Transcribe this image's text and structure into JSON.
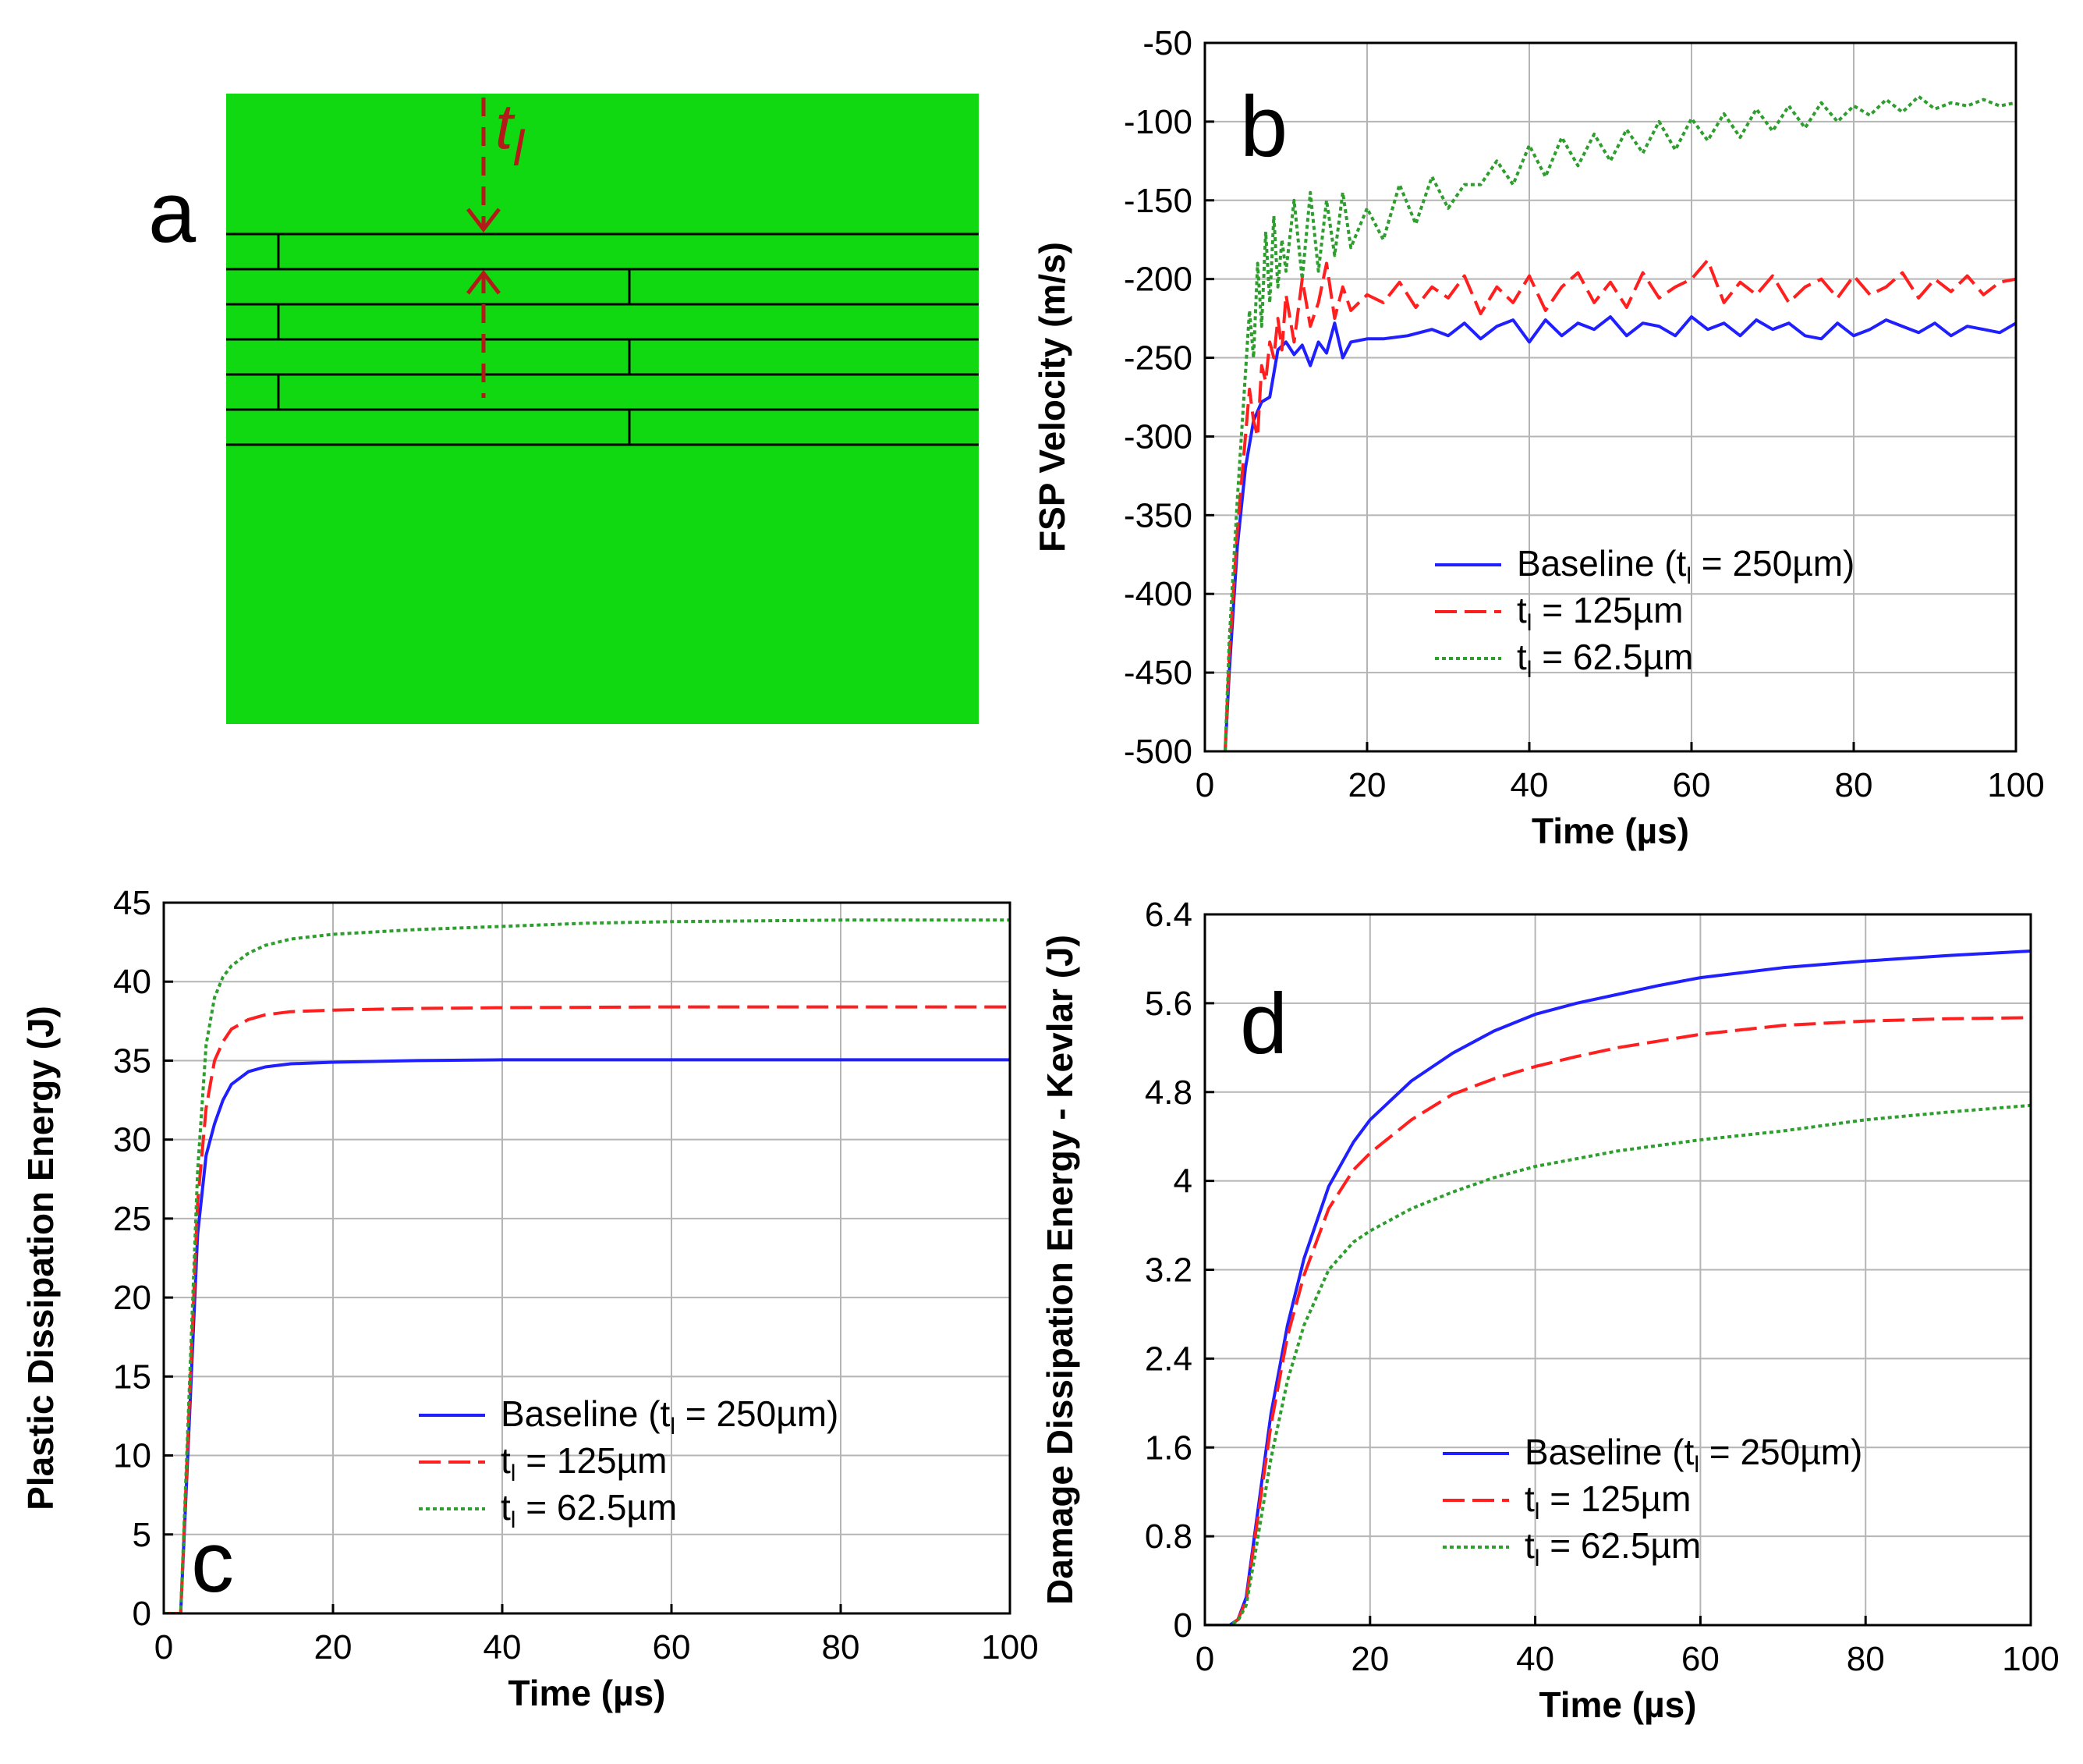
{
  "colors": {
    "baseline": "#1f1fff",
    "t125": "#ff1f1f",
    "t62": "#2e9e2e",
    "laminate_green": "#11d911",
    "annotation_red": "#b41a1a"
  },
  "panel_a": {
    "letter": "a",
    "thickness_label_main": "t",
    "thickness_label_sub": "l"
  },
  "chart_data": [
    {
      "panel": "b",
      "type": "line",
      "title": "",
      "xlabel": "Time (µs)",
      "ylabel": "FSP Velocity (m/s)",
      "xlim": [
        0,
        100
      ],
      "ylim": [
        -500,
        -50
      ],
      "xticks": [
        0,
        20,
        40,
        60,
        80,
        100
      ],
      "yticks": [
        -500,
        -450,
        -400,
        -350,
        -300,
        -250,
        -200,
        -150,
        -100,
        -50
      ],
      "xtick_labels": [
        "0",
        "20",
        "40",
        "60",
        "80",
        "100"
      ],
      "ytick_labels": [
        "-500",
        "-450",
        "-400",
        "-350",
        "-300",
        "-250",
        "-200",
        "-150",
        "-100",
        "-50"
      ],
      "grid": true,
      "legend_position": "bottom-right",
      "series": [
        {
          "name": "Baseline (tl = 250µm)",
          "legend_main": "Baseline (t",
          "legend_sub": "l",
          "legend_tail": " = 250µm)",
          "style": "solid",
          "x": [
            2.5,
            3,
            4,
            5,
            6,
            7,
            8,
            9,
            10,
            11,
            12,
            13,
            14,
            15,
            16,
            17,
            18,
            20,
            22,
            25,
            28,
            30,
            32,
            34,
            36,
            38,
            40,
            42,
            44,
            46,
            48,
            50,
            52,
            54,
            56,
            58,
            60,
            62,
            64,
            66,
            68,
            70,
            72,
            74,
            76,
            78,
            80,
            82,
            84,
            86,
            88,
            90,
            92,
            94,
            96,
            98,
            100
          ],
          "y": [
            -500,
            -450,
            -370,
            -320,
            -290,
            -278,
            -275,
            -245,
            -240,
            -248,
            -242,
            -255,
            -240,
            -247,
            -228,
            -250,
            -240,
            -238,
            -238,
            -236,
            -232,
            -236,
            -228,
            -238,
            -230,
            -226,
            -240,
            -226,
            -236,
            -228,
            -232,
            -224,
            -236,
            -228,
            -230,
            -236,
            -224,
            -232,
            -228,
            -236,
            -226,
            -232,
            -228,
            -236,
            -238,
            -228,
            -236,
            -232,
            -226,
            -230,
            -234,
            -228,
            -236,
            -230,
            -232,
            -234,
            -228
          ]
        },
        {
          "name": "tl = 125µm",
          "legend_main": "t",
          "legend_sub": "l",
          "legend_tail": " = 125µm",
          "style": "dashed",
          "x": [
            2.5,
            3,
            4,
            5,
            5.5,
            6,
            6.5,
            7,
            7.5,
            8,
            8.5,
            9,
            9.5,
            10,
            11,
            12,
            13,
            14,
            15,
            16,
            17,
            18,
            20,
            22,
            24,
            26,
            28,
            30,
            32,
            34,
            36,
            38,
            40,
            42,
            44,
            46,
            48,
            50,
            52,
            54,
            56,
            58,
            60,
            62,
            64,
            66,
            68,
            70,
            72,
            74,
            76,
            78,
            80,
            82,
            84,
            86,
            88,
            90,
            92,
            94,
            96,
            98,
            100
          ],
          "y": [
            -500,
            -440,
            -360,
            -300,
            -270,
            -290,
            -300,
            -255,
            -265,
            -240,
            -250,
            -225,
            -245,
            -210,
            -240,
            -200,
            -230,
            -215,
            -190,
            -225,
            -205,
            -220,
            -210,
            -215,
            -202,
            -218,
            -205,
            -212,
            -198,
            -222,
            -205,
            -215,
            -198,
            -220,
            -205,
            -196,
            -215,
            -202,
            -218,
            -196,
            -212,
            -205,
            -200,
            -188,
            -215,
            -202,
            -210,
            -198,
            -215,
            -205,
            -200,
            -212,
            -198,
            -210,
            -205,
            -196,
            -212,
            -200,
            -208,
            -198,
            -210,
            -202,
            -200
          ]
        },
        {
          "name": "tl = 62.5µm",
          "legend_main": "t",
          "legend_sub": "l",
          "legend_tail": " = 62.5µm",
          "style": "dotted",
          "x": [
            2.5,
            3,
            4,
            5,
            5.5,
            6,
            6.5,
            7,
            7.5,
            8,
            8.5,
            9,
            9.5,
            10,
            11,
            12,
            13,
            14,
            15,
            16,
            17,
            18,
            20,
            22,
            24,
            26,
            28,
            30,
            32,
            34,
            36,
            38,
            40,
            42,
            44,
            46,
            48,
            50,
            52,
            54,
            56,
            58,
            60,
            62,
            64,
            66,
            68,
            70,
            72,
            74,
            76,
            78,
            80,
            82,
            84,
            86,
            88,
            90,
            92,
            94,
            96,
            98,
            100
          ],
          "y": [
            -500,
            -430,
            -340,
            -260,
            -220,
            -250,
            -190,
            -230,
            -170,
            -215,
            -160,
            -205,
            -175,
            -195,
            -150,
            -200,
            -145,
            -195,
            -150,
            -185,
            -145,
            -180,
            -155,
            -175,
            -140,
            -165,
            -135,
            -155,
            -140,
            -140,
            -125,
            -140,
            -115,
            -135,
            -110,
            -128,
            -108,
            -125,
            -105,
            -120,
            -100,
            -118,
            -98,
            -112,
            -95,
            -110,
            -92,
            -106,
            -90,
            -104,
            -88,
            -100,
            -90,
            -96,
            -86,
            -94,
            -84,
            -92,
            -88,
            -90,
            -86,
            -90,
            -88
          ]
        }
      ]
    },
    {
      "panel": "c",
      "type": "line",
      "title": "",
      "xlabel": "Time (µs)",
      "ylabel": "Plastic Dissipation Energy (J)",
      "xlim": [
        0,
        100
      ],
      "ylim": [
        0,
        45
      ],
      "xticks": [
        0,
        20,
        40,
        60,
        80,
        100
      ],
      "yticks": [
        0,
        5,
        10,
        15,
        20,
        25,
        30,
        35,
        40,
        45
      ],
      "xtick_labels": [
        "0",
        "20",
        "40",
        "60",
        "80",
        "100"
      ],
      "ytick_labels": [
        "0",
        "5",
        "10",
        "15",
        "20",
        "25",
        "30",
        "35",
        "40",
        "45"
      ],
      "grid": true,
      "legend_position": "bottom-right",
      "series": [
        {
          "name": "Baseline (tl = 250µm)",
          "legend_main": "Baseline (t",
          "legend_sub": "l",
          "legend_tail": " = 250µm)",
          "style": "solid",
          "x": [
            0,
            2,
            3,
            4,
            5,
            6,
            7,
            8,
            10,
            12,
            15,
            20,
            30,
            40,
            60,
            80,
            100
          ],
          "y": [
            0,
            0,
            12,
            24,
            29,
            31,
            32.5,
            33.5,
            34.3,
            34.6,
            34.8,
            34.9,
            35.0,
            35.05,
            35.05,
            35.05,
            35.05
          ]
        },
        {
          "name": "tl = 125µm",
          "legend_main": "t",
          "legend_sub": "l",
          "legend_tail": " = 125µm",
          "style": "dashed",
          "x": [
            0,
            2,
            3,
            4,
            5,
            6,
            7,
            8,
            10,
            12,
            15,
            20,
            30,
            40,
            60,
            80,
            100
          ],
          "y": [
            0,
            0,
            13,
            26,
            32,
            35,
            36.2,
            37,
            37.6,
            37.9,
            38.1,
            38.2,
            38.3,
            38.35,
            38.4,
            38.4,
            38.4
          ]
        },
        {
          "name": "tl = 62.5µm",
          "legend_main": "t",
          "legend_sub": "l",
          "legend_tail": " = 62.5µm",
          "style": "dotted",
          "x": [
            0,
            2,
            3,
            4,
            5,
            6,
            7,
            8,
            10,
            12,
            15,
            20,
            30,
            40,
            50,
            60,
            80,
            100
          ],
          "y": [
            0,
            0,
            14,
            28,
            36,
            39,
            40.3,
            41,
            41.8,
            42.3,
            42.7,
            43.0,
            43.3,
            43.5,
            43.7,
            43.8,
            43.9,
            43.9
          ]
        }
      ]
    },
    {
      "panel": "d",
      "type": "line",
      "title": "",
      "xlabel": "Time (µs)",
      "ylabel": "Damage Dissipation Energy - Kevlar (J)",
      "xlim": [
        0,
        100
      ],
      "ylim": [
        0,
        6.4
      ],
      "xticks": [
        0,
        20,
        40,
        60,
        80,
        100
      ],
      "yticks": [
        0,
        0.8,
        1.6,
        2.4,
        3.2,
        4,
        4.8,
        5.6,
        6.4
      ],
      "xtick_labels": [
        "0",
        "20",
        "40",
        "60",
        "80",
        "100"
      ],
      "ytick_labels": [
        "0",
        "0.8",
        "1.6",
        "2.4",
        "3.2",
        "4",
        "4.8",
        "5.6",
        "6.4"
      ],
      "grid": true,
      "legend_position": "bottom-right",
      "series": [
        {
          "name": "Baseline (tl = 250µm)",
          "legend_main": "Baseline (t",
          "legend_sub": "l",
          "legend_tail": " = 250µm)",
          "style": "solid",
          "x": [
            0,
            3,
            4,
            5,
            6,
            8,
            10,
            12,
            15,
            18,
            20,
            25,
            30,
            35,
            40,
            45,
            50,
            55,
            60,
            70,
            80,
            90,
            100
          ],
          "y": [
            0,
            0,
            0.05,
            0.25,
            0.8,
            1.9,
            2.7,
            3.3,
            3.95,
            4.35,
            4.55,
            4.9,
            5.15,
            5.35,
            5.5,
            5.6,
            5.68,
            5.76,
            5.83,
            5.92,
            5.98,
            6.03,
            6.07
          ]
        },
        {
          "name": "tl = 125µm",
          "legend_main": "t",
          "legend_sub": "l",
          "legend_tail": " = 125µm",
          "style": "dashed",
          "x": [
            0,
            3,
            4,
            5,
            6,
            8,
            10,
            12,
            15,
            18,
            20,
            25,
            30,
            35,
            40,
            45,
            50,
            55,
            60,
            70,
            80,
            90,
            100
          ],
          "y": [
            0,
            0,
            0.05,
            0.22,
            0.75,
            1.8,
            2.6,
            3.15,
            3.75,
            4.1,
            4.25,
            4.55,
            4.78,
            4.92,
            5.03,
            5.12,
            5.2,
            5.26,
            5.32,
            5.4,
            5.44,
            5.46,
            5.47
          ]
        },
        {
          "name": "tl = 62.5µm",
          "legend_main": "t",
          "legend_sub": "l",
          "legend_tail": " = 62.5µm",
          "style": "dotted",
          "x": [
            0,
            3,
            4,
            5,
            6,
            8,
            10,
            12,
            15,
            18,
            20,
            25,
            30,
            35,
            40,
            45,
            50,
            55,
            60,
            70,
            80,
            90,
            100
          ],
          "y": [
            0,
            0,
            0.04,
            0.18,
            0.6,
            1.5,
            2.2,
            2.7,
            3.2,
            3.45,
            3.55,
            3.75,
            3.9,
            4.03,
            4.13,
            4.2,
            4.27,
            4.32,
            4.37,
            4.45,
            4.55,
            4.62,
            4.68
          ]
        }
      ]
    }
  ]
}
